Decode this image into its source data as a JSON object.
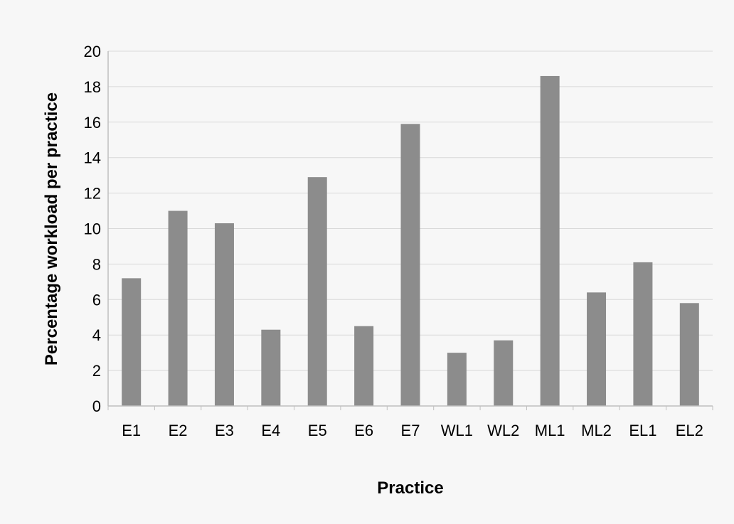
{
  "chart_data": {
    "type": "bar",
    "title": "",
    "xlabel": "Practice",
    "ylabel": "Percentage workload per practice",
    "categories": [
      "E1",
      "E2",
      "E3",
      "E4",
      "E5",
      "E6",
      "E7",
      "WL1",
      "WL2",
      "ML1",
      "ML2",
      "EL1",
      "EL2"
    ],
    "values": [
      7.2,
      11.0,
      10.3,
      4.3,
      12.9,
      4.5,
      15.9,
      3.0,
      3.7,
      18.6,
      6.4,
      8.1,
      5.8
    ],
    "ylim": [
      0,
      20
    ],
    "yticks": [
      0,
      2,
      4,
      6,
      8,
      10,
      12,
      14,
      16,
      18,
      20
    ],
    "grid": true,
    "legend": "none",
    "colors": {
      "bar": "#8c8c8c",
      "grid": "#d9d9d9",
      "axis": "#bfbfbf",
      "background": "#f7f7f7"
    }
  }
}
